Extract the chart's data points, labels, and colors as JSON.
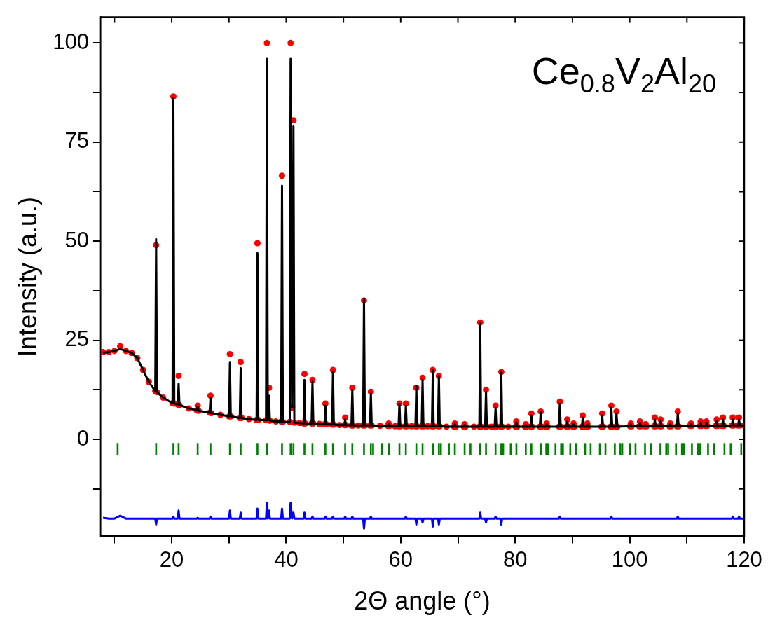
{
  "chart_data": {
    "type": "line",
    "xlabel": "2Θ angle (°)",
    "ylabel": "Intensity (a.u.)",
    "annotations": [
      "Ce$_{0.8}$V$_{2}$Al$_{20}$"
    ],
    "legend": false,
    "grid": false,
    "xlim": [
      7.5,
      120
    ],
    "ylim": [
      -24.5,
      106.5
    ],
    "xticks": [
      {
        "value": 10,
        "label": null
      },
      20,
      {
        "value": 30,
        "label": null
      },
      40,
      {
        "value": 50,
        "label": null
      },
      60,
      {
        "value": 70,
        "label": null
      },
      80,
      {
        "value": 90,
        "label": null
      },
      100,
      {
        "value": 110,
        "label": null
      },
      120
    ],
    "yticks": [
      {
        "value": -12.5,
        "label": null
      },
      0,
      {
        "value": 12.5,
        "label": null
      },
      25,
      {
        "value": 37.5,
        "label": null
      },
      50,
      {
        "value": 62.5,
        "label": null
      },
      75,
      {
        "value": 87.5,
        "label": null
      },
      100
    ],
    "x": [
      8,
      9,
      10,
      11,
      12,
      13,
      14,
      15,
      16,
      17.13,
      17.28,
      17.43,
      18.5,
      20.15,
      20.3,
      20.45,
      21.06,
      21.21,
      21.36,
      23,
      24.39,
      24.54,
      24.69,
      26.63,
      26.78,
      26.93,
      28.5,
      30.02,
      30.17,
      30.32,
      31.9,
      32.05,
      32.2,
      33.5,
      34.83,
      34.98,
      35.13,
      36.48,
      36.63,
      36.78,
      37,
      37.15,
      38.2,
      39.12,
      39.27,
      39.42,
      40.62,
      40.77,
      41.02,
      41.27,
      41.42,
      42.3,
      43.04,
      43.19,
      43.34,
      44.44,
      44.59,
      44.74,
      45.8,
      46.7,
      46.85,
      47,
      48.02,
      48.17,
      48.32,
      49.3,
      50.15,
      50.3,
      50.45,
      51.4,
      51.55,
      51.7,
      52.6,
      53.44,
      53.59,
      53.74,
      54.64,
      54.79,
      54.94,
      56.4,
      57.75,
      57.9,
      58.05,
      59,
      59.63,
      59.78,
      59.93,
      60.75,
      60.9,
      61.05,
      61.9,
      62.58,
      62.73,
      62.88,
      63.67,
      63.82,
      63.97,
      64.7,
      65.46,
      65.61,
      65.76,
      66.52,
      66.67,
      66.82,
      68,
      69.31,
      69.46,
      69.61,
      71.02,
      71.17,
      71.32,
      72.8,
      73.74,
      73.89,
      74.04,
      74.75,
      74.9,
      75.05,
      75.8,
      76.42,
      76.57,
      76.72,
      77.42,
      77.57,
      77.72,
      78.8,
      80.05,
      80.2,
      80.35,
      81.7,
      81.85,
      82,
      82.68,
      82.83,
      82.98,
      84.31,
      84.46,
      84.61,
      85.35,
      85.5,
      85.65,
      87.65,
      87.8,
      87.95,
      88.95,
      89.1,
      89.25,
      90.05,
      90.2,
      90.35,
      91.65,
      91.8,
      91.95,
      92.45,
      92.6,
      92.75,
      95.05,
      95.2,
      95.35,
      96.65,
      96.8,
      96.95,
      97.55,
      97.7,
      97.85,
      100.05,
      100.2,
      100.35,
      101.65,
      101.8,
      101.95,
      102.65,
      102.8,
      102.95,
      104.25,
      104.4,
      104.55,
      105.25,
      105.4,
      105.55,
      106.95,
      107.1,
      107.25,
      108.25,
      108.4,
      108.55,
      110.55,
      110.7,
      110.85,
      112.25,
      112.4,
      112.55,
      113.25,
      113.4,
      113.55,
      115.05,
      115.2,
      115.35,
      116.15,
      116.3,
      116.45,
      117.85,
      118,
      118.15,
      118.95,
      119.1,
      119.25,
      120
    ],
    "series": [
      {
        "type": "scatter",
        "marker": "circle",
        "color": "#ff0000",
        "values": [
          22,
          22,
          22.3,
          23.5,
          22.3,
          21.8,
          20.5,
          17.5,
          14.5,
          12.2,
          49,
          11.9,
          10.5,
          9.1,
          86.5,
          9,
          8.8,
          16,
          8.6,
          7.8,
          7.3,
          8.5,
          7.2,
          6.7,
          11,
          6.6,
          6.2,
          5.8,
          21.5,
          5.8,
          5.4,
          19.5,
          5.4,
          5.1,
          4.9,
          49.5,
          4.9,
          4.8,
          100,
          null,
          13,
          4.7,
          4.5,
          4.5,
          66.5,
          4.4,
          4.4,
          100,
          8,
          80.5,
          4.2,
          4.1,
          4,
          16.5,
          4,
          4,
          15,
          4,
          3.9,
          3.8,
          9,
          3.8,
          3.7,
          17.5,
          3.7,
          3.6,
          3.6,
          5.5,
          3.6,
          3.5,
          13,
          3.5,
          3.5,
          3.5,
          35,
          3.5,
          3.5,
          12,
          3.5,
          3.4,
          3.4,
          4,
          3.4,
          3.3,
          3.3,
          9,
          3.3,
          3.3,
          9,
          3.3,
          3.3,
          3.3,
          13,
          3.3,
          3.3,
          15.5,
          3.3,
          3.3,
          3.3,
          17.5,
          3.3,
          3.3,
          16,
          3.3,
          3.2,
          3.2,
          4,
          3.2,
          3.2,
          3.8,
          3.2,
          3.2,
          3.2,
          29.5,
          3.2,
          3.2,
          12.5,
          3.2,
          3.2,
          3.2,
          8.5,
          3.2,
          3.2,
          17,
          3.2,
          3.2,
          3.2,
          4.5,
          3.2,
          3.2,
          3.8,
          3.2,
          3.2,
          6.5,
          3.2,
          3.2,
          7,
          3.2,
          3.2,
          4,
          3.2,
          3.2,
          9.5,
          3.2,
          3.2,
          5,
          3.2,
          3.2,
          4,
          3.2,
          3.2,
          6,
          3.2,
          3.2,
          4,
          3.2,
          3.2,
          6.5,
          3.2,
          3.2,
          8.5,
          3.2,
          3.2,
          7,
          3.2,
          3.3,
          4,
          3.3,
          3.3,
          4.5,
          3.3,
          3.3,
          3.8,
          3.3,
          3.3,
          5.5,
          3.3,
          3.3,
          5,
          3.3,
          3.3,
          4,
          3.3,
          3.3,
          7,
          3.3,
          3.4,
          4,
          3.4,
          3.4,
          4.5,
          3.4,
          3.4,
          4.5,
          3.4,
          3.4,
          5,
          3.4,
          3.4,
          5.5,
          3.4,
          3.5,
          5.5,
          3.5,
          3.5,
          5.5,
          3.5,
          3.5
        ]
      },
      {
        "marker": "none",
        "color": "#000000",
        "values": [
          21.8,
          22,
          22.3,
          22.8,
          22.3,
          21.8,
          20.5,
          17.5,
          14.5,
          12.2,
          50.5,
          11.9,
          10.5,
          9.1,
          86,
          9,
          8.8,
          14,
          8.6,
          7.8,
          7.3,
          8.3,
          7.2,
          6.7,
          10.5,
          6.6,
          6.2,
          5.8,
          19.5,
          5.8,
          5.4,
          18,
          5.4,
          5.1,
          4.9,
          47,
          4.9,
          4.8,
          96,
          4.8,
          11,
          4.7,
          4.5,
          4.5,
          64,
          4.4,
          4.4,
          96,
          8,
          79,
          4.2,
          4.1,
          4,
          15,
          4,
          4,
          14.5,
          4,
          3.9,
          3.8,
          8.5,
          3.8,
          3.7,
          17,
          3.7,
          3.6,
          3.6,
          5,
          3.6,
          3.5,
          12.5,
          3.5,
          3.5,
          3.5,
          35.5,
          3.5,
          3.5,
          11.5,
          3.5,
          3.4,
          3.4,
          3.9,
          3.4,
          3.3,
          3.3,
          9,
          3.3,
          3.3,
          8.5,
          3.3,
          3.3,
          3.3,
          13.5,
          3.3,
          3.3,
          15,
          3.3,
          3.3,
          3.3,
          17.5,
          3.3,
          3.3,
          16,
          3.3,
          3.2,
          3.2,
          3.8,
          3.2,
          3.2,
          3.6,
          3.2,
          3.2,
          3.2,
          29.5,
          3.2,
          3.2,
          12,
          3.2,
          3.2,
          3.2,
          8,
          3.2,
          3.2,
          17,
          3.2,
          3.2,
          3.2,
          4.3,
          3.2,
          3.2,
          3.6,
          3.2,
          3.2,
          6,
          3.2,
          3.2,
          7,
          3.2,
          3.2,
          3.8,
          3.2,
          3.2,
          9,
          3.2,
          3.2,
          4.5,
          3.2,
          3.2,
          3.8,
          3.2,
          3.2,
          5.5,
          3.2,
          3.2,
          3.8,
          3.2,
          3.2,
          6,
          3.2,
          3.2,
          8,
          3.2,
          3.2,
          6.5,
          3.2,
          3.3,
          3.8,
          3.3,
          3.3,
          4.2,
          3.3,
          3.3,
          3.6,
          3.3,
          3.3,
          5,
          3.3,
          3.3,
          4.8,
          3.3,
          3.3,
          3.8,
          3.3,
          3.3,
          6.5,
          3.3,
          3.4,
          3.8,
          3.4,
          3.4,
          4.2,
          3.4,
          3.4,
          4.2,
          3.4,
          3.4,
          4.7,
          3.4,
          3.4,
          5,
          3.4,
          3.5,
          5,
          3.5,
          3.5,
          5,
          3.5,
          3.5
        ]
      },
      {
        "type": "bar",
        "color": "#008000",
        "x": [
          10.56,
          17.28,
          20.3,
          21.21,
          24.54,
          26.78,
          30.17,
          32.05,
          34.98,
          36.63,
          39.27,
          40.77,
          41.27,
          43.19,
          44.59,
          46.85,
          48.17,
          50.3,
          51.55,
          53.59,
          54.79,
          55.18,
          56.75,
          57.9,
          59.78,
          60.9,
          62.73,
          63.82,
          65.61,
          66.67,
          67.02,
          68.42,
          69.46,
          71.17,
          72.19,
          73.89,
          74.9,
          76.57,
          77.57,
          77.9,
          79.22,
          80.21,
          81.85,
          82.83,
          84.46,
          85.43,
          85.75,
          87.04,
          88.02,
          88.34,
          89.62,
          90.59,
          92.21,
          93.18,
          94.79,
          95.77,
          97.4,
          98.38,
          98.71,
          100.03,
          101.02,
          102.68,
          103.69,
          105.37,
          106.38,
          106.72,
          108.09,
          109.13,
          109.48,
          110.87,
          111.92,
          112.27,
          113.69,
          114.76,
          116.56,
          117.65,
          119.49
        ],
        "base": [
          -4,
          -4,
          -4,
          -4,
          -4,
          -4,
          -4,
          -4,
          -4,
          -4,
          -4,
          -4,
          -4,
          -4,
          -4,
          -4,
          -4,
          -4,
          -4,
          -4,
          -4,
          -4,
          -4,
          -4,
          -4,
          -4,
          -4,
          -4,
          -4,
          -4,
          -4,
          -4,
          -4,
          -4,
          -4,
          -4,
          -4,
          -4,
          -4,
          -4,
          -4,
          -4,
          -4,
          -4,
          -4,
          -4,
          -4,
          -4,
          -4,
          -4,
          -4,
          -4,
          -4,
          -4,
          -4,
          -4,
          -4,
          -4,
          -4,
          -4,
          -4,
          -4,
          -4,
          -4,
          -4,
          -4,
          -4,
          -4,
          -4,
          -4,
          -4,
          -4,
          -4,
          -4,
          -4,
          -4,
          -4
        ],
        "values": [
          3,
          3,
          3,
          3,
          3,
          3,
          3,
          3,
          3,
          3,
          3,
          3,
          3,
          3,
          3,
          3,
          3,
          3,
          3,
          3,
          3,
          3,
          3,
          3,
          3,
          3,
          3,
          3,
          3,
          3,
          3,
          3,
          3,
          3,
          3,
          3,
          3,
          3,
          3,
          3,
          3,
          3,
          3,
          3,
          3,
          3,
          3,
          3,
          3,
          3,
          3,
          3,
          3,
          3,
          3,
          3,
          3,
          3,
          3,
          3,
          3,
          3,
          3,
          3,
          3,
          3,
          3,
          3,
          3,
          3,
          3,
          3,
          3,
          3,
          3,
          3,
          3
        ]
      },
      {
        "marker": "none",
        "color": "#0000ff",
        "values": [
          -19.8,
          -20,
          -20,
          -19.3,
          -20,
          -20,
          -20,
          -20,
          -20,
          -20,
          -21.5,
          -20,
          -20,
          -20,
          -19.5,
          -20,
          -20,
          -18,
          -20,
          -20,
          -20,
          -19.8,
          -20,
          -20,
          -19.5,
          -20,
          -20,
          -20,
          -18,
          -20,
          -20,
          -18.5,
          -20,
          -20,
          -20,
          -17.5,
          -20,
          -20,
          -16,
          -20,
          -18,
          -20,
          -20,
          -20,
          -17.5,
          -20,
          -20,
          -16,
          -20,
          -18.5,
          -20,
          -20,
          -20,
          -18.5,
          -20,
          -20,
          -19.5,
          -20,
          -20,
          -20,
          -19.5,
          -20,
          -20,
          -19.5,
          -20,
          -20,
          -20,
          -19.5,
          -20,
          -20,
          -19.5,
          -20,
          -20,
          -20,
          -22.5,
          -20,
          -20,
          -19.5,
          -20,
          -20,
          -20,
          -20,
          -20,
          -20,
          -20,
          -20,
          -20,
          -20,
          -19.5,
          -20,
          -20,
          -20,
          -21.5,
          -20,
          -20,
          -21,
          -20,
          -20,
          -20,
          -22,
          -20,
          -20,
          -21.5,
          -20,
          -20,
          -20,
          -20,
          -20,
          -20,
          -20,
          -20,
          -20,
          -20,
          -18.5,
          -20,
          -20,
          -21,
          -20,
          -20,
          -20,
          -19.5,
          -20,
          -20,
          -21.5,
          -20,
          -20,
          -20,
          -20,
          -20,
          -20,
          -20,
          -20,
          -20,
          -20,
          -20,
          -20,
          -20,
          -20,
          -20,
          -20,
          -20,
          -20,
          -19.5,
          -20,
          -20,
          -20,
          -20,
          -20,
          -20,
          -20,
          -20,
          -20,
          -20,
          -20,
          -20,
          -20,
          -20,
          -20,
          -20,
          -20,
          -19.5,
          -20,
          -20,
          -20,
          -20,
          -20,
          -20,
          -20,
          -20,
          -20,
          -20,
          -20,
          -20,
          -20,
          -20,
          -20,
          -20,
          -20,
          -20,
          -20,
          -20,
          -20,
          -20,
          -20,
          -19.5,
          -20,
          -20,
          -20,
          -20,
          -20,
          -20,
          -20,
          -20,
          -20,
          -20,
          -20,
          -20,
          -20,
          -20,
          -20,
          -20,
          -20,
          -19.5,
          -20,
          -20,
          -19.5,
          -20,
          -20
        ]
      }
    ]
  }
}
